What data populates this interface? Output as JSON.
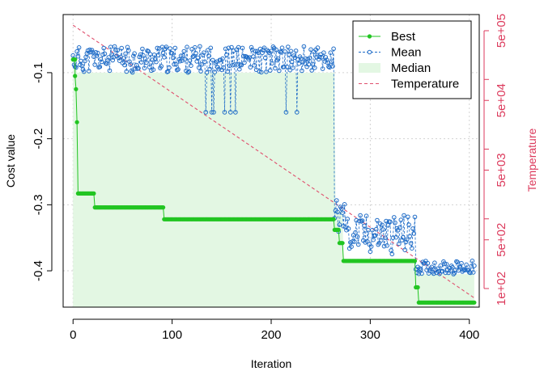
{
  "chart_data": {
    "type": "line",
    "xlabel": "Iteration",
    "ylabel": "Cost value",
    "y2label": "Temperature",
    "xlim": [
      -10,
      410
    ],
    "ylim": [
      -0.455,
      -0.012
    ],
    "xticks": [
      0,
      100,
      200,
      300,
      400
    ],
    "xtick_labels": [
      "0",
      "100",
      "200",
      "300",
      "400"
    ],
    "yticks": [
      -0.1,
      -0.2,
      -0.3,
      -0.4
    ],
    "ytick_labels": [
      "-0.1",
      "-0.2",
      "-0.3",
      "-0.4"
    ],
    "y2_scale": "log",
    "y2ticks": [
      100,
      500,
      1000,
      5000,
      10000,
      50000,
      100000,
      500000
    ],
    "y2tick_labels": [
      "1e+02",
      "5e+02",
      "",
      "5e+03",
      "",
      "5e+04",
      "",
      "5e+05"
    ],
    "grid": true,
    "legend_position": "top-right",
    "legend": [
      {
        "label": "Best",
        "style": "line-point",
        "color": "#22c522"
      },
      {
        "label": "Mean",
        "style": "dashed-circle",
        "color": "#1f6cc7"
      },
      {
        "label": "Median",
        "style": "band",
        "color": "#e3f7e3"
      },
      {
        "label": "Temperature",
        "style": "dashed",
        "color": "#e0506e"
      }
    ],
    "colors": {
      "best": "#22c522",
      "mean": "#1f6cc7",
      "median": "#e3f7e3",
      "temperature": "#e0506e",
      "axis2": "#dc3a5c"
    },
    "best_segments": [
      {
        "x": [
          0,
          2
        ],
        "y": -0.08
      },
      {
        "x": 2,
        "y": -0.105
      },
      {
        "x": 3,
        "y": -0.125
      },
      {
        "x": 4,
        "y": -0.175
      },
      {
        "x": [
          5,
          21
        ],
        "y": -0.283
      },
      {
        "x": [
          22,
          91
        ],
        "y": -0.304
      },
      {
        "x": [
          92,
          263
        ],
        "y": -0.322
      },
      {
        "x": [
          264,
          268
        ],
        "y": -0.338
      },
      {
        "x": [
          269,
          272
        ],
        "y": -0.358
      },
      {
        "x": [
          273,
          345
        ],
        "y": -0.385
      },
      {
        "x": [
          346,
          348
        ],
        "y": -0.425
      },
      {
        "x": [
          349,
          405
        ],
        "y": -0.448
      }
    ],
    "median": [
      [
        0,
        -0.075
      ],
      [
        3,
        -0.085
      ],
      [
        4,
        -0.1
      ],
      [
        264,
        -0.1
      ],
      [
        265,
        -0.31
      ],
      [
        272,
        -0.31
      ],
      [
        273,
        -0.385
      ],
      [
        345,
        -0.385
      ],
      [
        346,
        -0.405
      ],
      [
        405,
        -0.405
      ]
    ],
    "mean_phases": [
      {
        "x": [
          0,
          263
        ],
        "center": -0.08,
        "spread": 0.02
      },
      {
        "x": [
          264,
          275
        ],
        "center": -0.32,
        "spread": 0.03
      },
      {
        "x": [
          276,
          345
        ],
        "center": -0.345,
        "spread": 0.03
      },
      {
        "x": [
          346,
          405
        ],
        "center": -0.395,
        "spread": 0.01
      }
    ],
    "temperature": {
      "t0": 600000,
      "decay": 0.978,
      "x": [
        0,
        405
      ]
    }
  }
}
